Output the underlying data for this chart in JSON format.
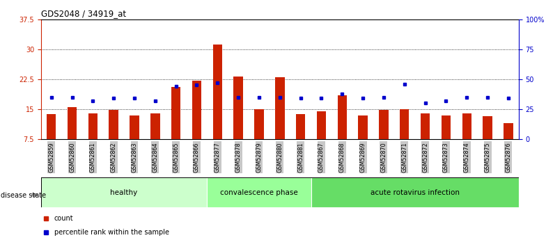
{
  "title": "GDS2048 / 34919_at",
  "samples": [
    "GSM52859",
    "GSM52860",
    "GSM52861",
    "GSM52862",
    "GSM52863",
    "GSM52864",
    "GSM52865",
    "GSM52866",
    "GSM52877",
    "GSM52878",
    "GSM52879",
    "GSM52880",
    "GSM52881",
    "GSM52867",
    "GSM52868",
    "GSM52869",
    "GSM52870",
    "GSM52871",
    "GSM52872",
    "GSM52873",
    "GSM52874",
    "GSM52875",
    "GSM52876"
  ],
  "counts": [
    13.8,
    15.5,
    14.0,
    14.8,
    13.5,
    14.0,
    20.5,
    22.2,
    31.2,
    23.2,
    15.0,
    23.0,
    13.8,
    14.5,
    18.5,
    13.5,
    14.8,
    15.0,
    14.0,
    13.5,
    14.0,
    13.2,
    11.5
  ],
  "percentiles_pct": [
    35,
    35,
    32,
    34,
    34,
    32,
    44,
    45,
    47,
    35,
    35,
    35,
    34,
    34,
    38,
    34,
    35,
    46,
    30,
    32,
    35,
    35,
    34
  ],
  "groups": [
    {
      "label": "healthy",
      "start": 0,
      "end": 8,
      "color": "#ccffcc"
    },
    {
      "label": "convalescence phase",
      "start": 8,
      "end": 13,
      "color": "#99ff99"
    },
    {
      "label": "acute rotavirus infection",
      "start": 13,
      "end": 23,
      "color": "#66dd66"
    }
  ],
  "ylim_left": [
    7.5,
    37.5
  ],
  "ylim_right": [
    0,
    100
  ],
  "yticks_left": [
    7.5,
    15.0,
    22.5,
    30.0,
    37.5
  ],
  "ytick_labels_left": [
    "7.5",
    "15",
    "22.5",
    "30",
    "37.5"
  ],
  "yticks_right": [
    0,
    25,
    50,
    75,
    100
  ],
  "ytick_labels_right": [
    "0",
    "25",
    "50",
    "75",
    "100%"
  ],
  "bar_color": "#cc2200",
  "dot_color": "#0000cc",
  "bg_color": "#ffffff",
  "tick_bg": "#c8c8c8",
  "left_axis_color": "#cc2200",
  "right_axis_color": "#0000cc"
}
